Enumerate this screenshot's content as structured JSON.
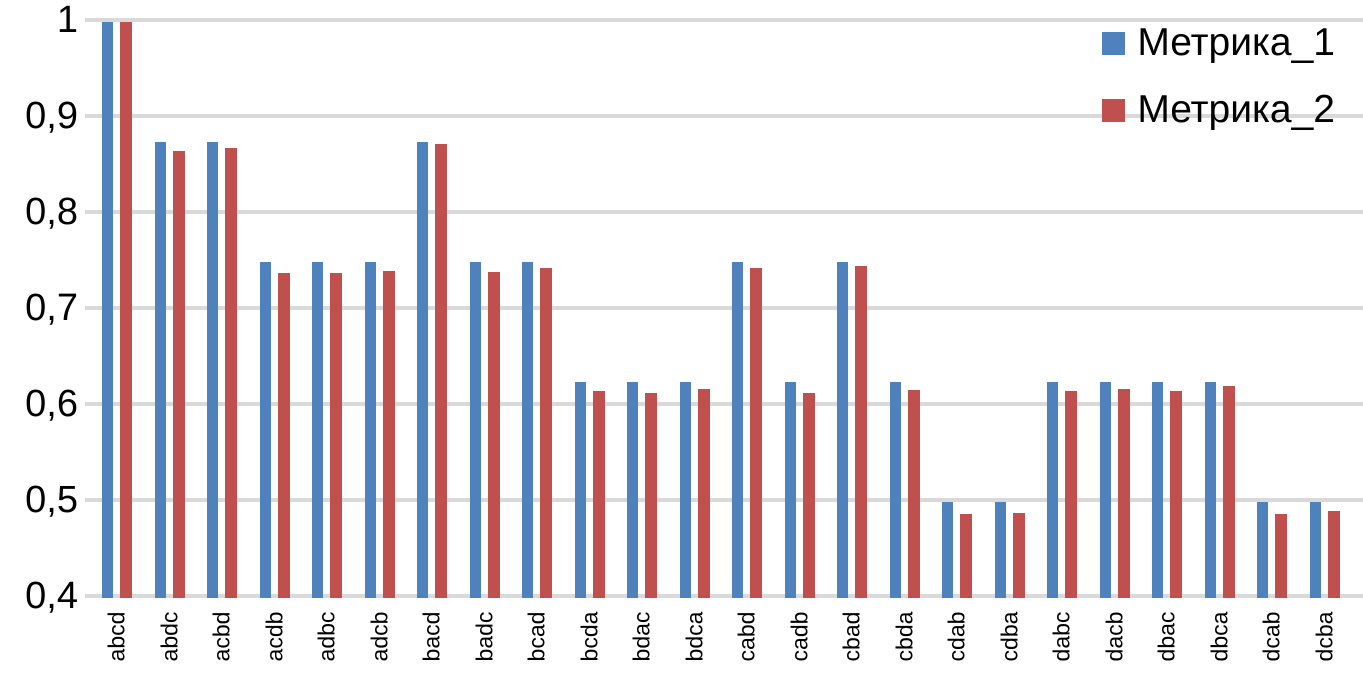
{
  "chart_data": {
    "type": "bar",
    "title": "",
    "xlabel": "",
    "ylabel": "",
    "categories": [
      "abcd",
      "abdc",
      "acbd",
      "acdb",
      "adbc",
      "adcb",
      "bacd",
      "badc",
      "bcad",
      "bcda",
      "bdac",
      "bdca",
      "cabd",
      "cadb",
      "cbad",
      "cbda",
      "cdab",
      "cdba",
      "dabc",
      "dacb",
      "dbac",
      "dbca",
      "dcab",
      "dcba"
    ],
    "series": [
      {
        "name": "Метрика_1",
        "color": "#4F81BD",
        "values": [
          1.0,
          0.875,
          0.875,
          0.75,
          0.75,
          0.75,
          0.875,
          0.75,
          0.75,
          0.625,
          0.625,
          0.625,
          0.75,
          0.625,
          0.75,
          0.625,
          0.5,
          0.5,
          0.625,
          0.625,
          0.625,
          0.625,
          0.5,
          0.5
        ]
      },
      {
        "name": "Метрика_2",
        "color": "#C0504D",
        "values": [
          1.0,
          0.866,
          0.869,
          0.739,
          0.739,
          0.741,
          0.873,
          0.74,
          0.744,
          0.616,
          0.614,
          0.618,
          0.744,
          0.614,
          0.746,
          0.617,
          0.487,
          0.489,
          0.616,
          0.618,
          0.616,
          0.621,
          0.488,
          0.491
        ]
      }
    ],
    "y_axis": {
      "min": 0.4,
      "max": 1.0,
      "tick_step": 0.1,
      "tick_labels": [
        "1",
        "0,9",
        "0,8",
        "0,7",
        "0,6",
        "0,5",
        "0,4"
      ],
      "decimal_separator": ","
    },
    "grid": true,
    "gridline_color": "#D9D9D9",
    "legend_position": "top-right",
    "background_color": "#FFFFFF",
    "text_color": "#000000"
  }
}
